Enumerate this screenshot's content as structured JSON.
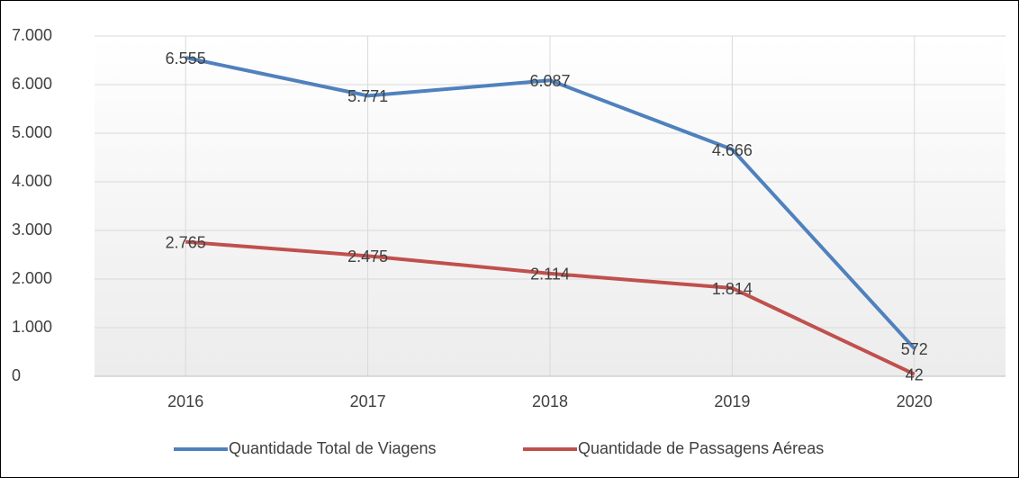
{
  "chart_data": {
    "type": "line",
    "categories": [
      "2016",
      "2017",
      "2018",
      "2019",
      "2020"
    ],
    "series": [
      {
        "name": "Quantidade Total de Viagens",
        "color": "#4f81bd",
        "values": [
          6555,
          5771,
          6087,
          4666,
          572
        ],
        "value_labels": [
          "6.555",
          "5.771",
          "6.087",
          "4.666",
          "572"
        ]
      },
      {
        "name": "Quantidade de Passagens Aéreas",
        "color": "#c0504d",
        "values": [
          2765,
          2475,
          2114,
          1814,
          42
        ],
        "value_labels": [
          "2.765",
          "2.475",
          "2.114",
          "1.814",
          "42"
        ]
      }
    ],
    "ylim": [
      0,
      7000
    ],
    "yticks": [
      0,
      {
        "value": 1000,
        "label": "1.000"
      },
      {
        "value": 2000,
        "label": "2.000"
      },
      {
        "value": 3000,
        "label": "3.000"
      },
      {
        "value": 4000,
        "label": "4.000"
      },
      {
        "value": 5000,
        "label": "5.000"
      },
      {
        "value": 6000,
        "label": "6.000"
      },
      {
        "value": 7000,
        "label": "7.000"
      }
    ],
    "grid": true,
    "legend": "bottom"
  }
}
